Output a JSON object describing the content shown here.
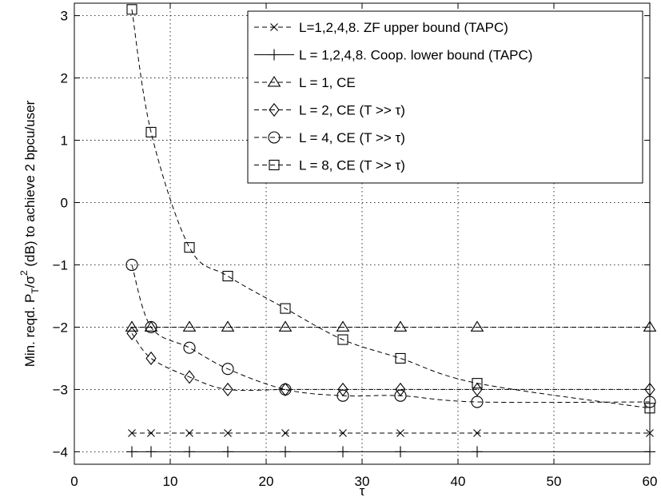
{
  "chart_data": {
    "type": "line",
    "xlabel": "τ",
    "ylabel": "Min. reqd. P_T/σ^2 (dB) to achieve 2 bpcu/user",
    "xlim": [
      0,
      60
    ],
    "ylim": [
      -4.2,
      3.2
    ],
    "xticks": [
      "0",
      "10",
      "20",
      "30",
      "40",
      "50",
      "60"
    ],
    "yticks": [
      "−4",
      "−3",
      "−2",
      "−1",
      "0",
      "1",
      "2",
      "3"
    ],
    "grid": true,
    "legend_position": "top-right",
    "series": [
      {
        "name": "L=1,2,4,8. ZF upper bound (TAPC)",
        "marker": "x",
        "line": "dashed",
        "x": [
          6,
          8,
          12,
          16,
          22,
          28,
          34,
          42,
          60
        ],
        "y": [
          -3.7,
          -3.7,
          -3.7,
          -3.7,
          -3.7,
          -3.7,
          -3.7,
          -3.7,
          -3.7
        ]
      },
      {
        "name": "L = 1,2,4,8. Coop. lower bound (TAPC)",
        "marker": "plus",
        "line": "solid",
        "x": [
          6,
          8,
          12,
          16,
          22,
          28,
          34,
          42,
          60
        ],
        "y": [
          -4.0,
          -4.0,
          -4.0,
          -4.0,
          -4.0,
          -4.0,
          -4.0,
          -4.0,
          -4.0
        ]
      },
      {
        "name": "L = 1, CE",
        "marker": "triangle",
        "line": "dashed",
        "x": [
          6,
          8,
          12,
          16,
          22,
          28,
          34,
          42,
          60
        ],
        "y": [
          -2.0,
          -2.0,
          -2.0,
          -2.0,
          -2.0,
          -2.0,
          -2.0,
          -2.0,
          -2.0
        ]
      },
      {
        "name": "L = 2, CE (T >> τ)",
        "marker": "diamond",
        "line": "dashed",
        "x": [
          6,
          8,
          12,
          16,
          22,
          28,
          34,
          42,
          60
        ],
        "y": [
          -2.1,
          -2.5,
          -2.8,
          -3.0,
          -3.0,
          -3.0,
          -3.0,
          -3.0,
          -3.0
        ]
      },
      {
        "name": "L = 4, CE (T >> τ)",
        "marker": "circle",
        "line": "dashed",
        "x": [
          6,
          8,
          12,
          16,
          22,
          28,
          34,
          42,
          60
        ],
        "y": [
          -1.0,
          -2.0,
          -2.33,
          -2.67,
          -3.0,
          -3.1,
          -3.1,
          -3.2,
          -3.2
        ]
      },
      {
        "name": "L = 8, CE (T >> τ)",
        "marker": "square",
        "line": "dashed",
        "x": [
          6,
          8,
          12,
          16,
          22,
          28,
          34,
          42,
          60
        ],
        "y": [
          3.1,
          1.13,
          -0.72,
          -1.18,
          -1.7,
          -2.2,
          -2.5,
          -2.9,
          -3.3
        ]
      }
    ]
  }
}
